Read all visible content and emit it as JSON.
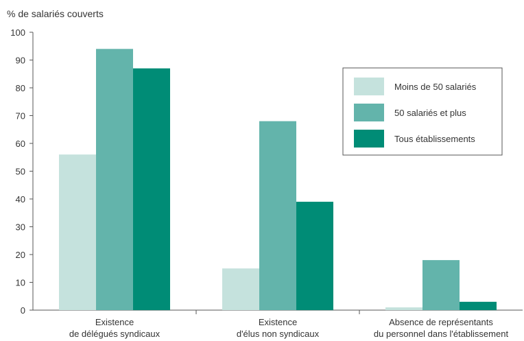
{
  "chart_data": {
    "type": "bar",
    "ylabel": "% de salariés couverts",
    "ylim": [
      0,
      100
    ],
    "yticks": [
      0,
      10,
      20,
      30,
      40,
      50,
      60,
      70,
      80,
      90,
      100
    ],
    "grid": false,
    "legend_position": "top-right",
    "categories": [
      [
        "Existence",
        "de délégués syndicaux"
      ],
      [
        "Existence",
        "d'élus non syndicaux"
      ],
      [
        "Absence de représentants",
        "du personnel dans l'établissement"
      ]
    ],
    "series": [
      {
        "name": "Moins de 50 salariés",
        "color": "#c5e2dd",
        "values": [
          56,
          15,
          1
        ]
      },
      {
        "name": "50 salariés et plus",
        "color": "#63b4ab",
        "values": [
          94,
          68,
          18
        ]
      },
      {
        "name": "Tous établissements",
        "color": "#008c76",
        "values": [
          87,
          39,
          3
        ]
      }
    ]
  }
}
